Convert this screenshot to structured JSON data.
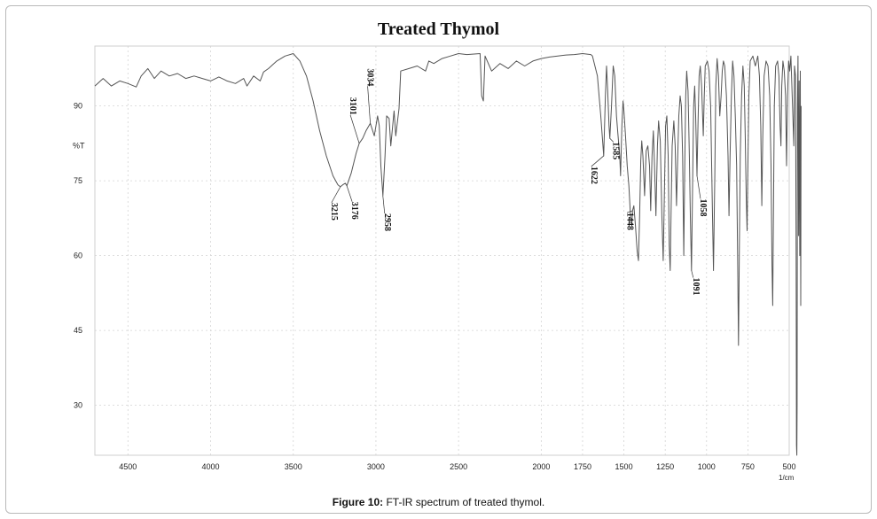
{
  "chart_data": {
    "type": "line",
    "title": "Treated Thymol",
    "ylabel": "%T",
    "xunit": "1/cm",
    "x_reversed": true,
    "xlim": [
      4700,
      500
    ],
    "ylim": [
      20,
      102
    ],
    "xticks": [
      4500,
      4000,
      3500,
      3000,
      2500,
      2000,
      1750,
      1500,
      1250,
      1000,
      750,
      500
    ],
    "xtick_labels": [
      "4500",
      "4000",
      "3500",
      "3000",
      "2500",
      "2000",
      "1750",
      "1500",
      "1250",
      "1000",
      "750",
      "500"
    ],
    "yticks": [
      90,
      75,
      60,
      45,
      30
    ],
    "ytick_labels": [
      "90",
      "75",
      "60",
      "45",
      "30"
    ],
    "grid": true,
    "series": [
      {
        "color": "#555555",
        "points": [
          [
            4700,
            94.0
          ],
          [
            4650,
            95.5
          ],
          [
            4600,
            94.0
          ],
          [
            4550,
            95.0
          ],
          [
            4500,
            94.5
          ],
          [
            4450,
            93.8
          ],
          [
            4420,
            96.0
          ],
          [
            4380,
            97.5
          ],
          [
            4340,
            95.5
          ],
          [
            4300,
            97.0
          ],
          [
            4250,
            96.0
          ],
          [
            4200,
            96.5
          ],
          [
            4150,
            95.5
          ],
          [
            4100,
            96.0
          ],
          [
            4050,
            95.5
          ],
          [
            4000,
            95.0
          ],
          [
            3950,
            95.8
          ],
          [
            3900,
            95.0
          ],
          [
            3850,
            94.5
          ],
          [
            3800,
            95.5
          ],
          [
            3780,
            94.0
          ],
          [
            3740,
            96.0
          ],
          [
            3700,
            95.0
          ],
          [
            3680,
            96.8
          ],
          [
            3650,
            97.5
          ],
          [
            3600,
            99.0
          ],
          [
            3550,
            100.0
          ],
          [
            3500,
            100.5
          ],
          [
            3460,
            99.0
          ],
          [
            3420,
            96.0
          ],
          [
            3380,
            91.0
          ],
          [
            3340,
            85.0
          ],
          [
            3300,
            80.0
          ],
          [
            3260,
            76.0
          ],
          [
            3230,
            74.2
          ],
          [
            3215,
            73.8
          ],
          [
            3200,
            74.2
          ],
          [
            3185,
            74.5
          ],
          [
            3176,
            74.0
          ],
          [
            3150,
            76.5
          ],
          [
            3120,
            80.5
          ],
          [
            3101,
            82.5
          ],
          [
            3080,
            83.5
          ],
          [
            3060,
            85.0
          ],
          [
            3034,
            86.5
          ],
          [
            3010,
            84.0
          ],
          [
            2990,
            88.0
          ],
          [
            2980,
            86.0
          ],
          [
            2970,
            78.0
          ],
          [
            2958,
            72.0
          ],
          [
            2945,
            80.0
          ],
          [
            2935,
            88.0
          ],
          [
            2920,
            87.5
          ],
          [
            2910,
            82.0
          ],
          [
            2890,
            89.0
          ],
          [
            2880,
            84.0
          ],
          [
            2860,
            89.5
          ],
          [
            2850,
            97.0
          ],
          [
            2800,
            97.5
          ],
          [
            2750,
            98.0
          ],
          [
            2700,
            97.0
          ],
          [
            2680,
            99.0
          ],
          [
            2650,
            98.5
          ],
          [
            2600,
            99.5
          ],
          [
            2550,
            100.0
          ],
          [
            2500,
            100.5
          ],
          [
            2450,
            100.3
          ],
          [
            2370,
            100.5
          ],
          [
            2360,
            92.0
          ],
          [
            2350,
            91.0
          ],
          [
            2340,
            100.0
          ],
          [
            2300,
            97.0
          ],
          [
            2250,
            98.5
          ],
          [
            2200,
            97.5
          ],
          [
            2150,
            99.0
          ],
          [
            2100,
            98.0
          ],
          [
            2050,
            99.0
          ],
          [
            2000,
            99.5
          ],
          [
            1950,
            99.8
          ],
          [
            1900,
            100.0
          ],
          [
            1850,
            100.2
          ],
          [
            1800,
            100.3
          ],
          [
            1750,
            100.5
          ],
          [
            1700,
            100.3
          ],
          [
            1690,
            100.0
          ],
          [
            1660,
            96.0
          ],
          [
            1640,
            88.0
          ],
          [
            1622,
            80.0
          ],
          [
            1612,
            92.0
          ],
          [
            1605,
            98.0
          ],
          [
            1598,
            93.0
          ],
          [
            1590,
            86.0
          ],
          [
            1585,
            83.5
          ],
          [
            1575,
            90.0
          ],
          [
            1565,
            98.0
          ],
          [
            1555,
            96.0
          ],
          [
            1545,
            88.0
          ],
          [
            1535,
            84.0
          ],
          [
            1525,
            80.0
          ],
          [
            1520,
            76.0
          ],
          [
            1512,
            86.0
          ],
          [
            1505,
            91.0
          ],
          [
            1500,
            89.0
          ],
          [
            1490,
            84.0
          ],
          [
            1480,
            78.0
          ],
          [
            1470,
            74.0
          ],
          [
            1460,
            68.0
          ],
          [
            1452,
            66.0
          ],
          [
            1448,
            69.0
          ],
          [
            1440,
            70.0
          ],
          [
            1430,
            66.0
          ],
          [
            1420,
            61.0
          ],
          [
            1412,
            59.0
          ],
          [
            1405,
            68.0
          ],
          [
            1398,
            79.0
          ],
          [
            1392,
            83.0
          ],
          [
            1385,
            80.0
          ],
          [
            1375,
            72.0
          ],
          [
            1365,
            81.0
          ],
          [
            1355,
            82.0
          ],
          [
            1345,
            78.0
          ],
          [
            1338,
            69.0
          ],
          [
            1330,
            80.0
          ],
          [
            1322,
            85.0
          ],
          [
            1315,
            78.0
          ],
          [
            1306,
            68.0
          ],
          [
            1297,
            82.0
          ],
          [
            1290,
            87.0
          ],
          [
            1280,
            83.0
          ],
          [
            1270,
            68.0
          ],
          [
            1262,
            59.0
          ],
          [
            1255,
            72.0
          ],
          [
            1248,
            86.0
          ],
          [
            1240,
            88.0
          ],
          [
            1232,
            80.0
          ],
          [
            1226,
            62.0
          ],
          [
            1220,
            57.0
          ],
          [
            1214,
            70.0
          ],
          [
            1208,
            82.0
          ],
          [
            1198,
            87.0
          ],
          [
            1190,
            82.0
          ],
          [
            1182,
            70.0
          ],
          [
            1174,
            80.0
          ],
          [
            1168,
            88.0
          ],
          [
            1160,
            92.0
          ],
          [
            1152,
            90.0
          ],
          [
            1145,
            80.0
          ],
          [
            1138,
            60.0
          ],
          [
            1132,
            78.0
          ],
          [
            1126,
            92.0
          ],
          [
            1120,
            97.0
          ],
          [
            1112,
            93.0
          ],
          [
            1104,
            80.0
          ],
          [
            1098,
            68.0
          ],
          [
            1091,
            57.0
          ],
          [
            1085,
            72.0
          ],
          [
            1078,
            90.0
          ],
          [
            1072,
            94.0
          ],
          [
            1066,
            88.0
          ],
          [
            1058,
            76.0
          ],
          [
            1052,
            86.0
          ],
          [
            1045,
            96.0
          ],
          [
            1038,
            98.0
          ],
          [
            1030,
            94.0
          ],
          [
            1020,
            84.0
          ],
          [
            1014,
            92.0
          ],
          [
            1008,
            98.0
          ],
          [
            995,
            99.0
          ],
          [
            985,
            97.0
          ],
          [
            975,
            90.0
          ],
          [
            965,
            70.0
          ],
          [
            958,
            57.0
          ],
          [
            950,
            76.0
          ],
          [
            944,
            94.0
          ],
          [
            936,
            99.5
          ],
          [
            928,
            96.0
          ],
          [
            920,
            88.0
          ],
          [
            912,
            92.0
          ],
          [
            905,
            97.0
          ],
          [
            898,
            99.0
          ],
          [
            890,
            98.0
          ],
          [
            880,
            92.0
          ],
          [
            870,
            80.0
          ],
          [
            864,
            68.0
          ],
          [
            858,
            80.0
          ],
          [
            850,
            92.0
          ],
          [
            842,
            99.0
          ],
          [
            834,
            96.0
          ],
          [
            826,
            88.0
          ],
          [
            818,
            78.0
          ],
          [
            812,
            60.0
          ],
          [
            807,
            42.0
          ],
          [
            802,
            60.0
          ],
          [
            796,
            80.0
          ],
          [
            788,
            92.0
          ],
          [
            780,
            98.0
          ],
          [
            772,
            94.0
          ],
          [
            766,
            84.0
          ],
          [
            760,
            72.0
          ],
          [
            755,
            65.0
          ],
          [
            750,
            78.0
          ],
          [
            744,
            92.0
          ],
          [
            736,
            99.0
          ],
          [
            720,
            100.0
          ],
          [
            705,
            98.0
          ],
          [
            690,
            100.0
          ],
          [
            680,
            96.0
          ],
          [
            672,
            86.0
          ],
          [
            666,
            70.0
          ],
          [
            660,
            84.0
          ],
          [
            652,
            96.0
          ],
          [
            640,
            99.0
          ],
          [
            628,
            98.0
          ],
          [
            618,
            92.0
          ],
          [
            610,
            78.0
          ],
          [
            604,
            58.0
          ],
          [
            600,
            50.0
          ],
          [
            595,
            70.0
          ],
          [
            590,
            90.0
          ],
          [
            582,
            98.0
          ],
          [
            570,
            99.0
          ],
          [
            562,
            96.0
          ],
          [
            555,
            86.0
          ],
          [
            550,
            82.0
          ],
          [
            545,
            94.0
          ],
          [
            538,
            99.0
          ],
          [
            530,
            97.0
          ],
          [
            522,
            92.0
          ],
          [
            516,
            78.0
          ],
          [
            510,
            92.0
          ],
          [
            504,
            99.0
          ],
          [
            497,
            97.0
          ],
          [
            490,
            100.0
          ],
          [
            484,
            94.0
          ],
          [
            478,
            88.0
          ],
          [
            472,
            82.0
          ],
          [
            468,
            98.0
          ],
          [
            462,
            96.0
          ],
          [
            458,
            60.0
          ],
          [
            456,
            22.0
          ],
          [
            454,
            20.0
          ],
          [
            452,
            30.0
          ],
          [
            450,
            90.0
          ],
          [
            447,
            100.0
          ],
          [
            443,
            64.0
          ],
          [
            440,
            95.0
          ],
          [
            436,
            60.0
          ],
          [
            433,
            97.0
          ],
          [
            430,
            50.0
          ],
          [
            428,
            90.0
          ]
        ]
      }
    ],
    "annotations": [
      {
        "label": "3215",
        "x": 3215,
        "y": 73.8
      },
      {
        "label": "3176",
        "x": 3176,
        "y": 74.0
      },
      {
        "label": "3101",
        "x": 3101,
        "y": 82.5
      },
      {
        "label": "3034",
        "x": 3034,
        "y": 86.5
      },
      {
        "label": "2958",
        "x": 2958,
        "y": 72.0
      },
      {
        "label": "1622",
        "x": 1622,
        "y": 80.0
      },
      {
        "label": "1585",
        "x": 1585,
        "y": 83.5
      },
      {
        "label": "1448",
        "x": 1448,
        "y": 69.0
      },
      {
        "label": "1091",
        "x": 1091,
        "y": 57.0
      },
      {
        "label": "1058",
        "x": 1058,
        "y": 76.0
      }
    ]
  },
  "caption": {
    "label": "Figure 10:",
    "text": " FT-IR spectrum of treated thymol."
  }
}
